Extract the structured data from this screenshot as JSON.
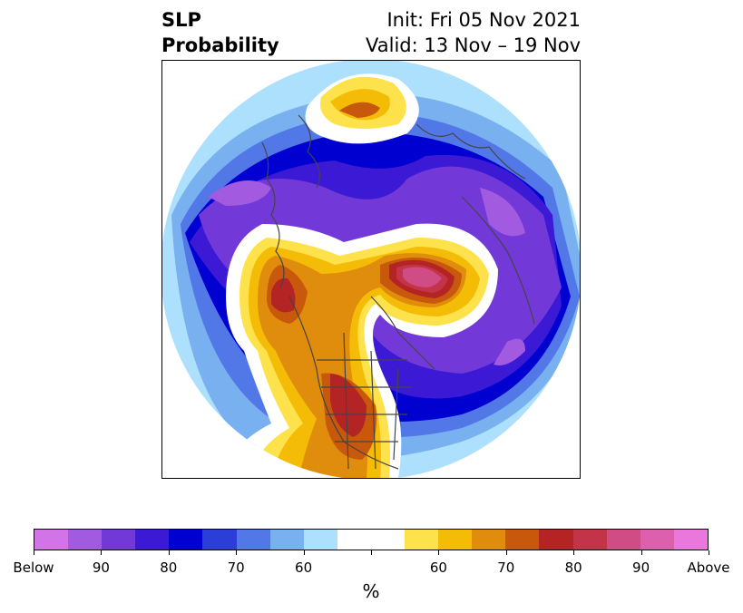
{
  "title": {
    "left_line1": "SLP",
    "left_line2": "Probability",
    "right_line1": "Init: Fri 05 Nov 2021",
    "right_line2": "Valid: 13 Nov – 19 Nov"
  },
  "map": {
    "projection": "polar-stereographic-north",
    "content": "sea-level-pressure-probability-field"
  },
  "colorbar": {
    "unit": "%",
    "colors": [
      "#d174e8",
      "#a25ae0",
      "#7339d8",
      "#3c19d4",
      "#0000d0",
      "#2c3ed8",
      "#5278e8",
      "#78b0f0",
      "#ace0fc",
      "#ffffff",
      "#ffffff",
      "#fde24c",
      "#f4bc06",
      "#e08c0c",
      "#c8580c",
      "#b42424",
      "#c43448",
      "#d04c84",
      "#dc60ac",
      "#ea78dc"
    ],
    "tick_labels": [
      "Below",
      "90",
      "80",
      "70",
      "60",
      "60",
      "70",
      "80",
      "90",
      "Above"
    ]
  }
}
